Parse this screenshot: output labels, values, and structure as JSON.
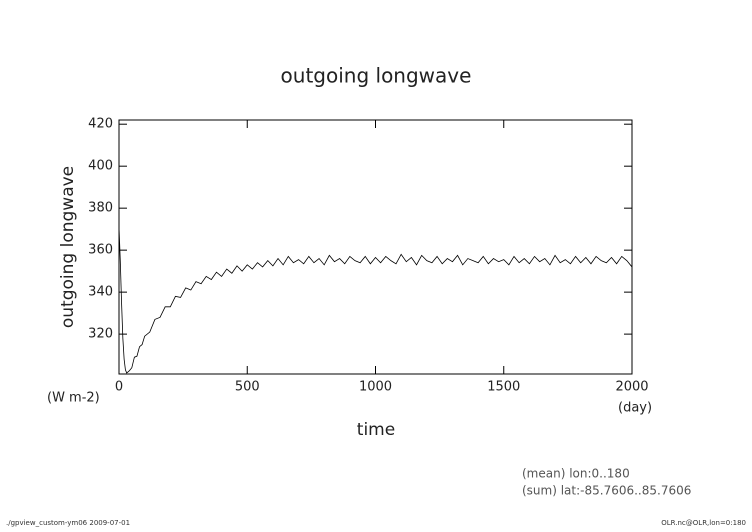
{
  "chart_data": {
    "type": "line",
    "title": "outgoing longwave",
    "ylabel": "outgoing longwave",
    "xlabel": "time",
    "y_units": "(W m-2)",
    "x_units": "(day)",
    "annotations": [
      "(mean) lon:0..180",
      "(sum) lat:-85.7606..85.7606"
    ],
    "footer": [
      "./gpview_custom-ym06  2009-07-01",
      "OLR.nc@OLR,lon=0:180"
    ],
    "xlim": [
      0,
      2000
    ],
    "xticks": [
      0,
      500,
      1000,
      1500,
      2000
    ],
    "ylim": [
      301,
      422
    ],
    "yticks": [
      320,
      340,
      360,
      380,
      400,
      420
    ],
    "color": "#000000",
    "x": [
      0,
      5,
      10,
      15,
      20,
      25,
      30,
      35,
      40,
      50,
      60,
      70,
      80,
      90,
      100,
      120,
      140,
      160,
      180,
      200,
      220,
      240,
      260,
      280,
      300,
      320,
      340,
      360,
      380,
      400,
      420,
      440,
      460,
      480,
      500,
      520,
      540,
      560,
      580,
      600,
      620,
      640,
      660,
      680,
      700,
      720,
      740,
      760,
      780,
      800,
      820,
      840,
      860,
      880,
      900,
      920,
      940,
      960,
      980,
      1000,
      1020,
      1040,
      1060,
      1080,
      1100,
      1120,
      1140,
      1160,
      1180,
      1200,
      1220,
      1240,
      1260,
      1280,
      1300,
      1320,
      1340,
      1360,
      1380,
      1400,
      1420,
      1440,
      1460,
      1480,
      1500,
      1520,
      1540,
      1560,
      1580,
      1600,
      1620,
      1640,
      1660,
      1680,
      1700,
      1720,
      1740,
      1760,
      1780,
      1800,
      1820,
      1840,
      1860,
      1880,
      1900,
      1920,
      1940,
      1960,
      1980,
      2000
    ],
    "values": [
      371,
      355,
      335,
      318,
      308,
      303,
      301.5,
      302,
      302.5,
      304,
      309,
      309.5,
      314,
      315,
      319,
      321,
      327,
      328,
      333,
      333,
      338,
      337.5,
      342,
      341,
      345,
      344,
      347.5,
      346,
      349.5,
      347.5,
      351,
      349,
      352.5,
      350,
      353,
      351,
      354,
      352,
      355,
      352.5,
      356,
      353,
      357,
      354,
      355.5,
      353.5,
      357,
      354,
      356,
      353,
      357.5,
      354.5,
      356,
      353.5,
      357,
      355,
      354,
      357,
      353.5,
      356.5,
      354,
      357,
      355,
      353.5,
      358,
      354.5,
      356.5,
      353,
      357.5,
      355,
      354,
      357,
      353.5,
      356,
      354.5,
      357.5,
      353,
      356,
      355,
      354,
      357,
      353.5,
      356,
      354.5,
      355.5,
      353,
      357,
      354,
      356,
      353.5,
      357,
      354.5,
      356,
      353,
      357.5,
      354,
      355.5,
      353.5,
      357,
      354,
      356.5,
      353.5,
      357,
      355,
      354,
      356.5,
      353.5,
      357,
      355,
      352
    ]
  }
}
